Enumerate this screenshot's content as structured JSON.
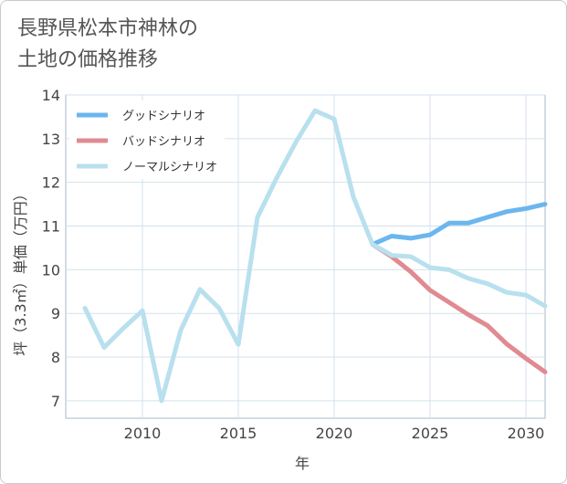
{
  "title_lines": [
    "長野県松本市神林の",
    "土地の価格推移"
  ],
  "chart_data": {
    "type": "line",
    "xlabel": "年",
    "ylabel": "坪（3.3㎡）単価（万円）",
    "xlim": [
      2006,
      2031
    ],
    "ylim": [
      6.6,
      14
    ],
    "x_ticks": [
      2010,
      2015,
      2020,
      2025,
      2030
    ],
    "y_ticks": [
      7,
      8,
      9,
      10,
      11,
      12,
      13,
      14
    ],
    "grid": true,
    "legend_position": "top-left",
    "series": [
      {
        "name": "グッドシナリオ",
        "color": "#6bb6ee",
        "x": [
          2022,
          2023,
          2024,
          2025,
          2026,
          2027,
          2028,
          2029,
          2030,
          2031
        ],
        "values": [
          10.58,
          10.77,
          10.72,
          10.8,
          11.07,
          11.07,
          11.2,
          11.33,
          11.4,
          11.5
        ]
      },
      {
        "name": "バッドシナリオ",
        "color": "#e08a92",
        "x": [
          2022,
          2023,
          2024,
          2025,
          2026,
          2027,
          2028,
          2029,
          2030,
          2031
        ],
        "values": [
          10.58,
          10.3,
          9.95,
          9.53,
          9.25,
          8.97,
          8.72,
          8.3,
          7.97,
          7.66
        ]
      },
      {
        "name": "ノーマルシナリオ",
        "color": "#b8e0ee",
        "x": [
          2007,
          2008,
          2009,
          2010,
          2011,
          2012,
          2013,
          2014,
          2015,
          2016,
          2017,
          2018,
          2019,
          2020,
          2021,
          2022,
          2023,
          2024,
          2025,
          2026,
          2027,
          2028,
          2029,
          2030,
          2031
        ],
        "values": [
          9.12,
          8.22,
          8.66,
          9.06,
          7.0,
          8.62,
          9.55,
          9.12,
          8.29,
          11.2,
          12.1,
          12.92,
          13.64,
          13.45,
          11.67,
          10.58,
          10.33,
          10.3,
          10.05,
          10.0,
          9.8,
          9.68,
          9.48,
          9.42,
          9.17
        ]
      }
    ]
  }
}
